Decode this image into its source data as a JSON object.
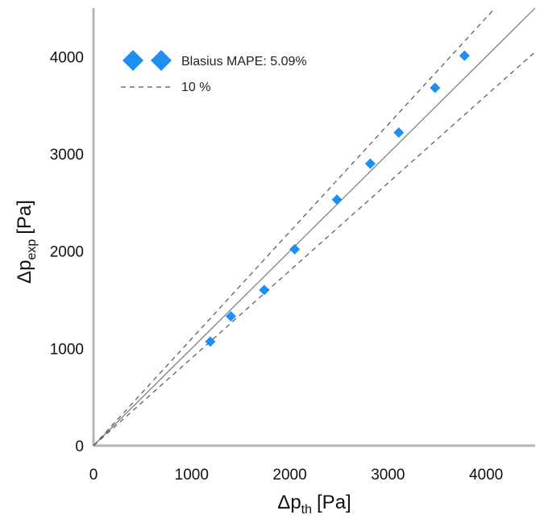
{
  "chart_data": {
    "type": "scatter",
    "title": "",
    "xlabel": {
      "symbol": "Δp",
      "subscript": "th",
      "unit": "[Pa]"
    },
    "ylabel": {
      "symbol": "Δp",
      "subscript": "exp",
      "unit": "[Pa]"
    },
    "xlim": [
      0,
      4500
    ],
    "ylim": [
      0,
      4500
    ],
    "xticks": [
      "0",
      "1000",
      "2000",
      "3000",
      "4000"
    ],
    "yticks": [
      "0",
      "1000",
      "2000",
      "3000",
      "4000"
    ],
    "grid": false,
    "legend_position": "top-left",
    "series": [
      {
        "name": "Blasius MAPE: 5.09%",
        "marker": "diamond",
        "color": "#1e8ef0",
        "x": [
          1190,
          1400,
          1740,
          2050,
          2480,
          2820,
          3110,
          3480,
          3780
        ],
        "y": [
          1070,
          1330,
          1600,
          2020,
          2530,
          2900,
          3220,
          3680,
          4010
        ]
      }
    ],
    "reference_lines": [
      {
        "name": "",
        "slope": 1.0,
        "style": "solid",
        "color": "#777777"
      },
      {
        "name": "10 %",
        "slope": 1.1,
        "style": "dashed",
        "color": "#555555"
      },
      {
        "name": "10 %",
        "slope": 0.9,
        "style": "dashed",
        "color": "#555555"
      }
    ]
  }
}
